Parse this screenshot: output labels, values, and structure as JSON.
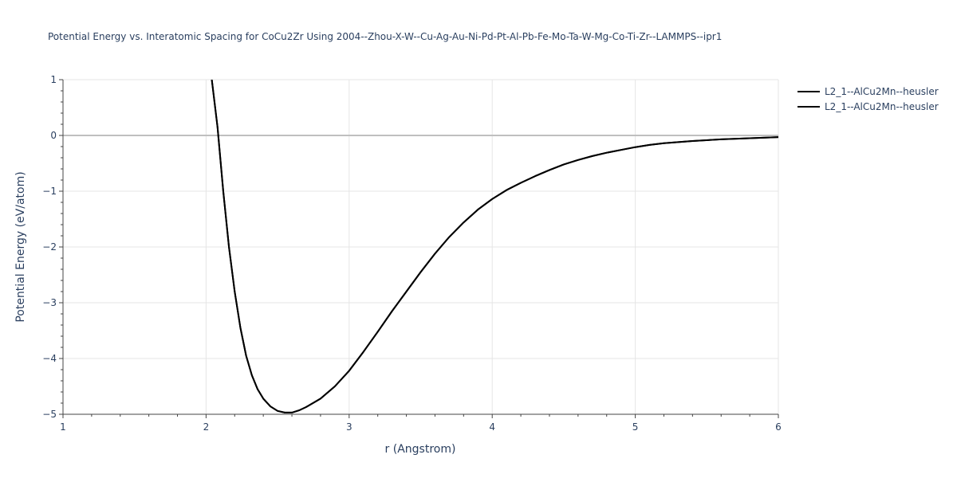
{
  "chart_data": {
    "type": "line",
    "title": "Potential Energy vs. Interatomic Spacing for CoCu2Zr Using 2004--Zhou-X-W--Cu-Ag-Au-Ni-Pd-Pt-Al-Pb-Fe-Mo-Ta-W-Mg-Co-Ti-Zr--LAMMPS--ipr1",
    "xlabel": "r (Angstrom)",
    "ylabel": "Potential Energy (eV/atom)",
    "xlim": [
      1,
      6
    ],
    "ylim": [
      -5,
      1
    ],
    "x_ticks": [
      "1",
      "2",
      "3",
      "4",
      "5",
      "6"
    ],
    "y_ticks": [
      "1",
      "0",
      "−1",
      "−2",
      "−3",
      "−4",
      "−5"
    ],
    "grid": true,
    "legend_position": "top-right",
    "series": [
      {
        "name": "L2_1--AlCu2Mn--heusler",
        "color": "#000000",
        "x": [
          2.04,
          2.08,
          2.12,
          2.16,
          2.2,
          2.24,
          2.28,
          2.32,
          2.36,
          2.4,
          2.45,
          2.5,
          2.55,
          2.6,
          2.65,
          2.7,
          2.8,
          2.9,
          3.0,
          3.1,
          3.2,
          3.3,
          3.4,
          3.5,
          3.6,
          3.7,
          3.8,
          3.9,
          4.0,
          4.1,
          4.2,
          4.3,
          4.4,
          4.5,
          4.6,
          4.7,
          4.8,
          4.9,
          5.0,
          5.1,
          5.2,
          5.4,
          5.6,
          5.8,
          6.0
        ],
        "values": [
          1.0,
          0.15,
          -1.0,
          -2.0,
          -2.8,
          -3.45,
          -3.95,
          -4.3,
          -4.55,
          -4.72,
          -4.86,
          -4.94,
          -4.97,
          -4.97,
          -4.93,
          -4.87,
          -4.72,
          -4.5,
          -4.22,
          -3.88,
          -3.52,
          -3.15,
          -2.8,
          -2.45,
          -2.12,
          -1.82,
          -1.56,
          -1.33,
          -1.14,
          -0.98,
          -0.85,
          -0.73,
          -0.62,
          -0.52,
          -0.44,
          -0.37,
          -0.31,
          -0.26,
          -0.21,
          -0.17,
          -0.14,
          -0.1,
          -0.07,
          -0.05,
          -0.03
        ]
      },
      {
        "name": "L2_1--AlCu2Mn--heusler",
        "color": "#000000",
        "x": [
          2.04,
          2.08,
          2.12,
          2.16,
          2.2,
          2.24,
          2.28,
          2.32,
          2.36,
          2.4,
          2.45,
          2.5,
          2.55,
          2.6,
          2.65,
          2.7,
          2.8,
          2.9,
          3.0,
          3.1,
          3.2,
          3.3,
          3.4,
          3.5,
          3.6,
          3.7,
          3.8,
          3.9,
          4.0,
          4.1,
          4.2,
          4.3,
          4.4,
          4.5,
          4.6,
          4.7,
          4.8,
          4.9,
          5.0,
          5.1,
          5.2,
          5.4,
          5.6,
          5.8,
          6.0
        ],
        "values": [
          1.0,
          0.15,
          -1.0,
          -2.0,
          -2.8,
          -3.45,
          -3.95,
          -4.3,
          -4.55,
          -4.72,
          -4.86,
          -4.94,
          -4.97,
          -4.97,
          -4.93,
          -4.87,
          -4.72,
          -4.5,
          -4.22,
          -3.88,
          -3.52,
          -3.15,
          -2.8,
          -2.45,
          -2.12,
          -1.82,
          -1.56,
          -1.33,
          -1.14,
          -0.98,
          -0.85,
          -0.73,
          -0.62,
          -0.52,
          -0.44,
          -0.37,
          -0.31,
          -0.26,
          -0.21,
          -0.17,
          -0.14,
          -0.1,
          -0.07,
          -0.05,
          -0.03
        ]
      }
    ]
  }
}
